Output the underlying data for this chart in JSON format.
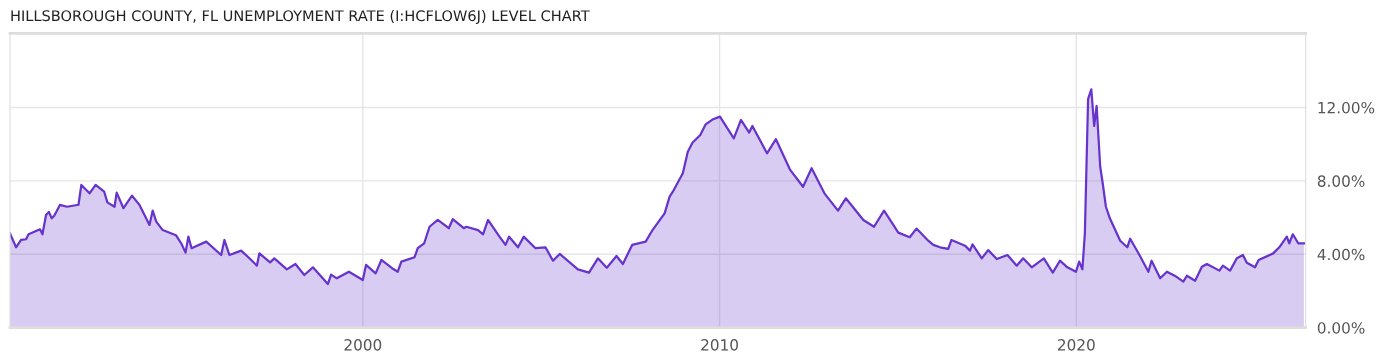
{
  "chart_data": {
    "type": "area",
    "title": "HILLSBOROUGH COUNTY, FL UNEMPLOYMENT RATE (I:HCFLOW6J) LEVEL CHART",
    "xlim": [
      1990.11,
      2026.43
    ],
    "xticks": [
      2000,
      2010,
      2020
    ],
    "ylim": [
      0,
      16.04
    ],
    "yticks": [
      {
        "value": 0,
        "label": "0.00%"
      },
      {
        "value": 4,
        "label": "4.00%"
      },
      {
        "value": 8,
        "label": "8.00%"
      },
      {
        "value": 12,
        "label": "12.00%"
      }
    ],
    "grid": true,
    "legend": false,
    "series": [
      {
        "color": "#6633cc",
        "x": [
          1990.11,
          1990.28,
          1990.42,
          1990.56,
          1990.63,
          1990.95,
          1991.02,
          1991.12,
          1991.2,
          1991.28,
          1991.35,
          1991.51,
          1991.71,
          1992.03,
          1992.11,
          1992.34,
          1992.51,
          1992.75,
          1992.84,
          1993.04,
          1993.1,
          1993.29,
          1993.53,
          1993.74,
          1994.02,
          1994.11,
          1994.21,
          1994.39,
          1994.76,
          1994.91,
          1995.03,
          1995.11,
          1995.2,
          1995.61,
          1996.03,
          1996.12,
          1996.26,
          1996.59,
          1996.85,
          1997.03,
          1997.1,
          1997.4,
          1997.52,
          1997.87,
          1998.11,
          1998.36,
          1998.6,
          1999.02,
          1999.11,
          1999.27,
          1999.61,
          2000.0,
          2000.09,
          2000.36,
          2000.52,
          2000.82,
          2000.98,
          2001.08,
          2001.45,
          2001.54,
          2001.72,
          2001.87,
          2002.1,
          2002.41,
          2002.52,
          2002.83,
          2002.9,
          2003.23,
          2003.37,
          2003.51,
          2003.83,
          2004.0,
          2004.1,
          2004.35,
          2004.51,
          2004.84,
          2005.12,
          2005.33,
          2005.52,
          2006.03,
          2006.34,
          2006.59,
          2006.84,
          2007.11,
          2007.29,
          2007.55,
          2007.93,
          2008.12,
          2008.46,
          2008.6,
          2008.69,
          2008.97,
          2009.11,
          2009.24,
          2009.46,
          2009.61,
          2009.82,
          2010.01,
          2010.4,
          2010.6,
          2010.83,
          2010.92,
          2011.33,
          2011.58,
          2011.97,
          2012.34,
          2012.58,
          2012.95,
          2013.32,
          2013.54,
          2014.03,
          2014.33,
          2014.61,
          2014.87,
          2015.01,
          2015.33,
          2015.52,
          2015.85,
          2015.99,
          2016.18,
          2016.41,
          2016.5,
          2016.88,
          2017.02,
          2017.09,
          2017.35,
          2017.53,
          2017.77,
          2018.07,
          2018.33,
          2018.51,
          2018.75,
          2019.09,
          2019.34,
          2019.54,
          2019.75,
          2019.99,
          2020.08,
          2020.17,
          2020.24,
          2020.33,
          2020.42,
          2020.5,
          2020.57,
          2020.67,
          2020.74,
          2020.83,
          2020.94,
          2021.23,
          2021.43,
          2021.51,
          2021.77,
          2022.02,
          2022.11,
          2022.35,
          2022.54,
          2022.77,
          2023.0,
          2023.1,
          2023.33,
          2023.52,
          2023.66,
          2024.01,
          2024.11,
          2024.31,
          2024.5,
          2024.67,
          2024.78,
          2025.01,
          2025.11,
          2025.52,
          2025.69,
          2025.9,
          2025.97,
          2026.07,
          2026.22,
          2026.38
        ],
        "values": [
          5.14,
          4.38,
          4.78,
          4.82,
          5.09,
          5.36,
          5.09,
          6.14,
          6.31,
          5.96,
          6.1,
          6.69,
          6.59,
          6.7,
          7.78,
          7.32,
          7.78,
          7.41,
          6.83,
          6.59,
          7.36,
          6.51,
          7.19,
          6.69,
          5.6,
          6.38,
          5.78,
          5.32,
          5.04,
          4.6,
          4.09,
          4.96,
          4.33,
          4.69,
          3.96,
          4.78,
          3.96,
          4.2,
          3.73,
          3.38,
          4.05,
          3.56,
          3.78,
          3.18,
          3.47,
          2.87,
          3.29,
          2.38,
          2.89,
          2.69,
          3.05,
          2.6,
          3.42,
          2.96,
          3.69,
          3.24,
          3.05,
          3.6,
          3.84,
          4.33,
          4.6,
          5.5,
          5.87,
          5.42,
          5.91,
          5.42,
          5.5,
          5.32,
          5.09,
          5.87,
          4.96,
          4.51,
          4.96,
          4.38,
          4.96,
          4.33,
          4.38,
          3.65,
          4.02,
          3.18,
          3.0,
          3.78,
          3.27,
          3.91,
          3.47,
          4.51,
          4.69,
          5.32,
          6.23,
          7.14,
          7.41,
          8.41,
          9.59,
          10.08,
          10.5,
          11.08,
          11.36,
          11.5,
          10.32,
          11.32,
          10.63,
          10.99,
          9.5,
          10.27,
          8.63,
          7.68,
          8.69,
          7.29,
          6.38,
          7.05,
          5.87,
          5.5,
          6.38,
          5.6,
          5.18,
          4.93,
          5.4,
          4.74,
          4.51,
          4.38,
          4.29,
          4.78,
          4.47,
          4.2,
          4.54,
          3.78,
          4.23,
          3.74,
          3.96,
          3.38,
          3.78,
          3.29,
          3.78,
          3.0,
          3.65,
          3.29,
          3.05,
          3.6,
          3.18,
          5.14,
          12.45,
          12.99,
          10.99,
          12.08,
          8.77,
          7.87,
          6.59,
          5.96,
          4.74,
          4.38,
          4.85,
          3.96,
          3.05,
          3.65,
          2.69,
          3.05,
          2.82,
          2.51,
          2.83,
          2.56,
          3.32,
          3.47,
          3.11,
          3.38,
          3.11,
          3.78,
          3.96,
          3.54,
          3.29,
          3.69,
          4.05,
          4.38,
          4.96,
          4.6,
          5.09,
          4.6,
          4.6
        ]
      }
    ]
  }
}
